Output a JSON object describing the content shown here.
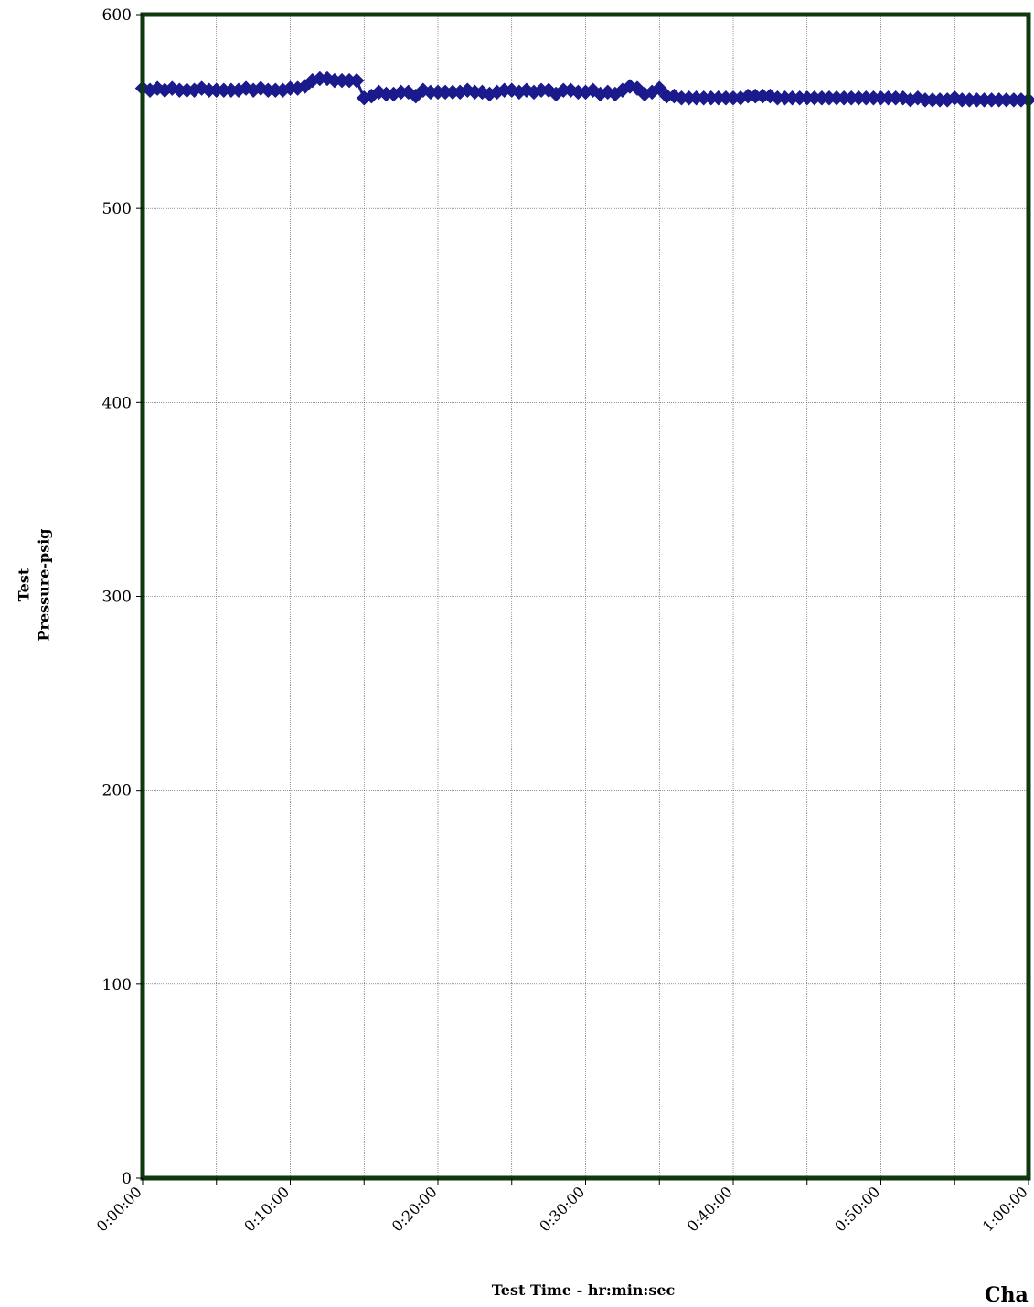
{
  "chart_data": {
    "type": "scatter",
    "title": "",
    "xlabel": "Test Time - hr:min:sec",
    "ylabel_lines": [
      "Test",
      "Pressure-psig"
    ],
    "corner_label": "Cha",
    "xlim_minutes": [
      0,
      60
    ],
    "ylim": [
      0,
      600
    ],
    "x_ticks": [
      "0:00:00",
      "0:10:00",
      "0:20:00",
      "0:30:00",
      "0:40:00",
      "0:50:00",
      "1:00:00"
    ],
    "y_ticks": [
      "0",
      "100",
      "200",
      "300",
      "400",
      "500",
      "600"
    ],
    "grid": true,
    "legend": "none",
    "colors": {
      "series": "#1a1a8c",
      "frame": "#0e3a0e",
      "grid": "#555555"
    },
    "series": [
      {
        "x_minutes": [
          0,
          0.5,
          1,
          1.5,
          2,
          2.5,
          3,
          3.5,
          4,
          4.5,
          5,
          5.5,
          6,
          6.5,
          7,
          7.5,
          8,
          8.5,
          9,
          9.5,
          10,
          10.5,
          11,
          11.5,
          12,
          12.5,
          13,
          13.5,
          14,
          14.5,
          15,
          15.5,
          16,
          16.5,
          17,
          17.5,
          18,
          18.5,
          19,
          19.5,
          20,
          20.5,
          21,
          21.5,
          22,
          22.5,
          23,
          23.5,
          24,
          24.5,
          25,
          25.5,
          26,
          26.5,
          27,
          27.5,
          28,
          28.5,
          29,
          29.5,
          30,
          30.5,
          31,
          31.5,
          32,
          32.5,
          33,
          33.5,
          34,
          34.5,
          35,
          35.5,
          36,
          36.5,
          37,
          37.5,
          38,
          38.5,
          39,
          39.5,
          40,
          40.5,
          41,
          41.5,
          42,
          42.5,
          43,
          43.5,
          44,
          44.5,
          45,
          45.5,
          46,
          46.5,
          47,
          47.5,
          48,
          48.5,
          49,
          49.5,
          50,
          50.5,
          51,
          51.5,
          52,
          52.5,
          53,
          53.5,
          54,
          54.5,
          55,
          55.5,
          56,
          56.5,
          57,
          57.5,
          58,
          58.5,
          59,
          59.5,
          60
        ],
        "y": [
          562,
          561,
          562,
          561,
          562,
          561,
          561,
          561,
          562,
          561,
          561,
          561,
          561,
          561,
          562,
          561,
          562,
          561,
          561,
          561,
          562,
          562,
          563,
          566,
          567,
          567,
          566,
          566,
          566,
          566,
          557,
          558,
          560,
          559,
          559,
          560,
          560,
          558,
          561,
          560,
          560,
          560,
          560,
          560,
          561,
          560,
          560,
          559,
          560,
          561,
          561,
          560,
          561,
          560,
          561,
          561,
          559,
          561,
          561,
          560,
          560,
          561,
          559,
          560,
          559,
          561,
          563,
          562,
          559,
          560,
          562,
          558,
          558,
          557,
          557,
          557,
          557,
          557,
          557,
          557,
          557,
          557,
          558,
          558,
          558,
          558,
          557,
          557,
          557,
          557,
          557,
          557,
          557,
          557,
          557,
          557,
          557,
          557,
          557,
          557,
          557,
          557,
          557,
          557,
          556,
          557,
          556,
          556,
          556,
          556,
          557,
          556,
          556,
          556,
          556,
          556,
          556,
          556,
          556,
          556,
          556
        ]
      }
    ]
  }
}
